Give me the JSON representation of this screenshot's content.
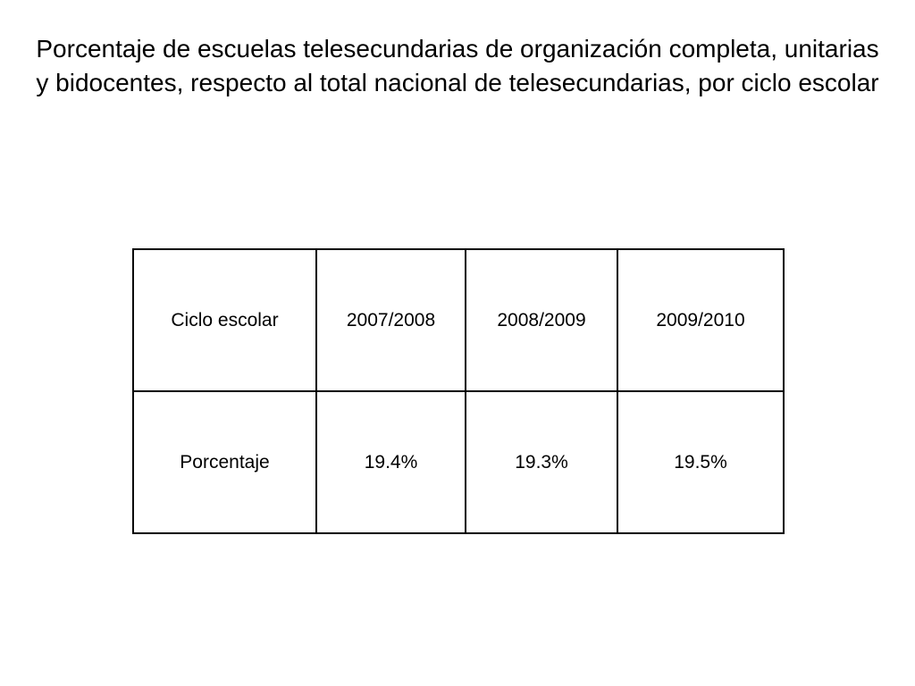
{
  "title": "Porcentaje de escuelas telesecundarias de organización completa, unitarias y bidocentes, respecto al total nacional de telesecundarias, por ciclo escolar",
  "table": {
    "header_row": [
      "Ciclo escolar",
      "2007/2008",
      "2008/2009",
      "2009/2010"
    ],
    "data_row": [
      "Porcentaje",
      "19.4%",
      "19.3%",
      "19.5%"
    ]
  }
}
